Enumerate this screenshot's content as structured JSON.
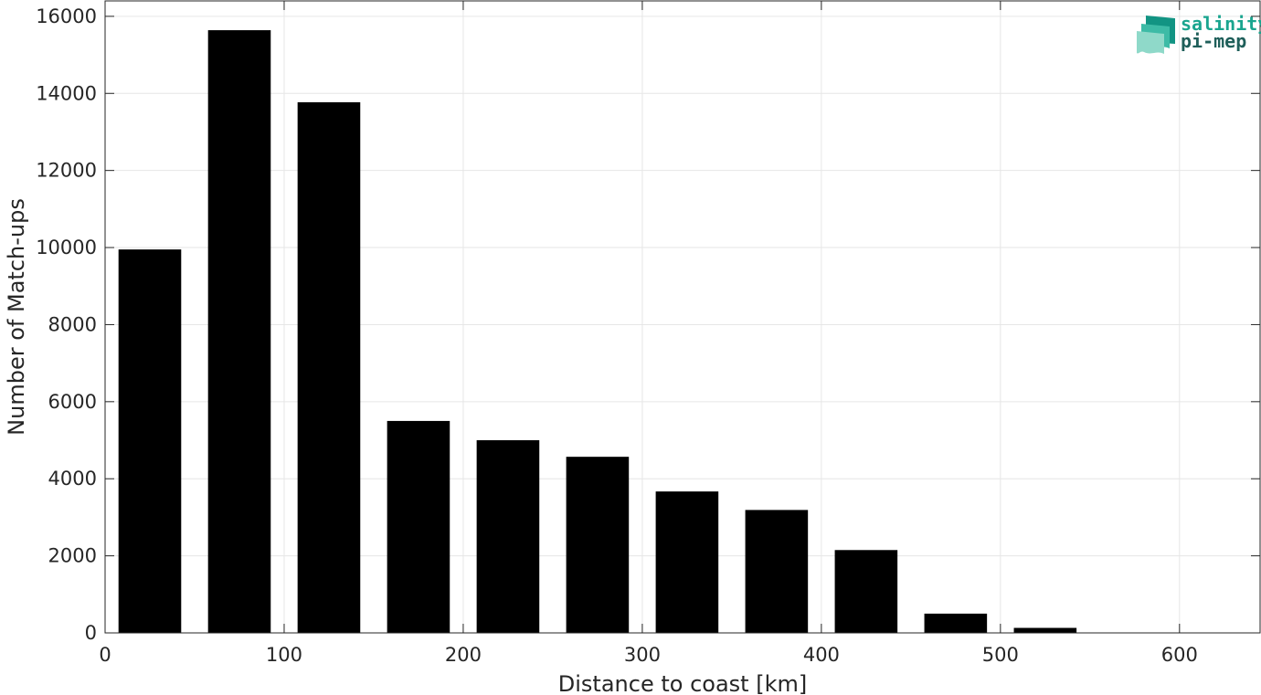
{
  "chart_data": {
    "type": "bar",
    "x": [
      25,
      75,
      125,
      175,
      225,
      275,
      325,
      375,
      425,
      475,
      525
    ],
    "values": [
      9950,
      15640,
      13770,
      5500,
      5000,
      4570,
      3670,
      3190,
      2150,
      500,
      130
    ],
    "bar_width": 35,
    "xlabel": "Distance to coast [km]",
    "ylabel": "Number of Match-ups",
    "xlim": [
      0,
      645
    ],
    "ylim": [
      0,
      16400
    ],
    "xticks": [
      0,
      100,
      200,
      300,
      400,
      500,
      600
    ],
    "yticks": [
      0,
      2000,
      4000,
      6000,
      8000,
      10000,
      12000,
      14000,
      16000
    ],
    "grid": true,
    "bar_color": "#000000"
  },
  "logo": {
    "line1": "salinity",
    "line2": "pi-mep",
    "colors": {
      "line1": "#1aa58f",
      "line2": "#1f5f5a",
      "mark_dark": "#129483",
      "mark_mid": "#3dbba6",
      "mark_light": "#8fd9c9"
    }
  }
}
